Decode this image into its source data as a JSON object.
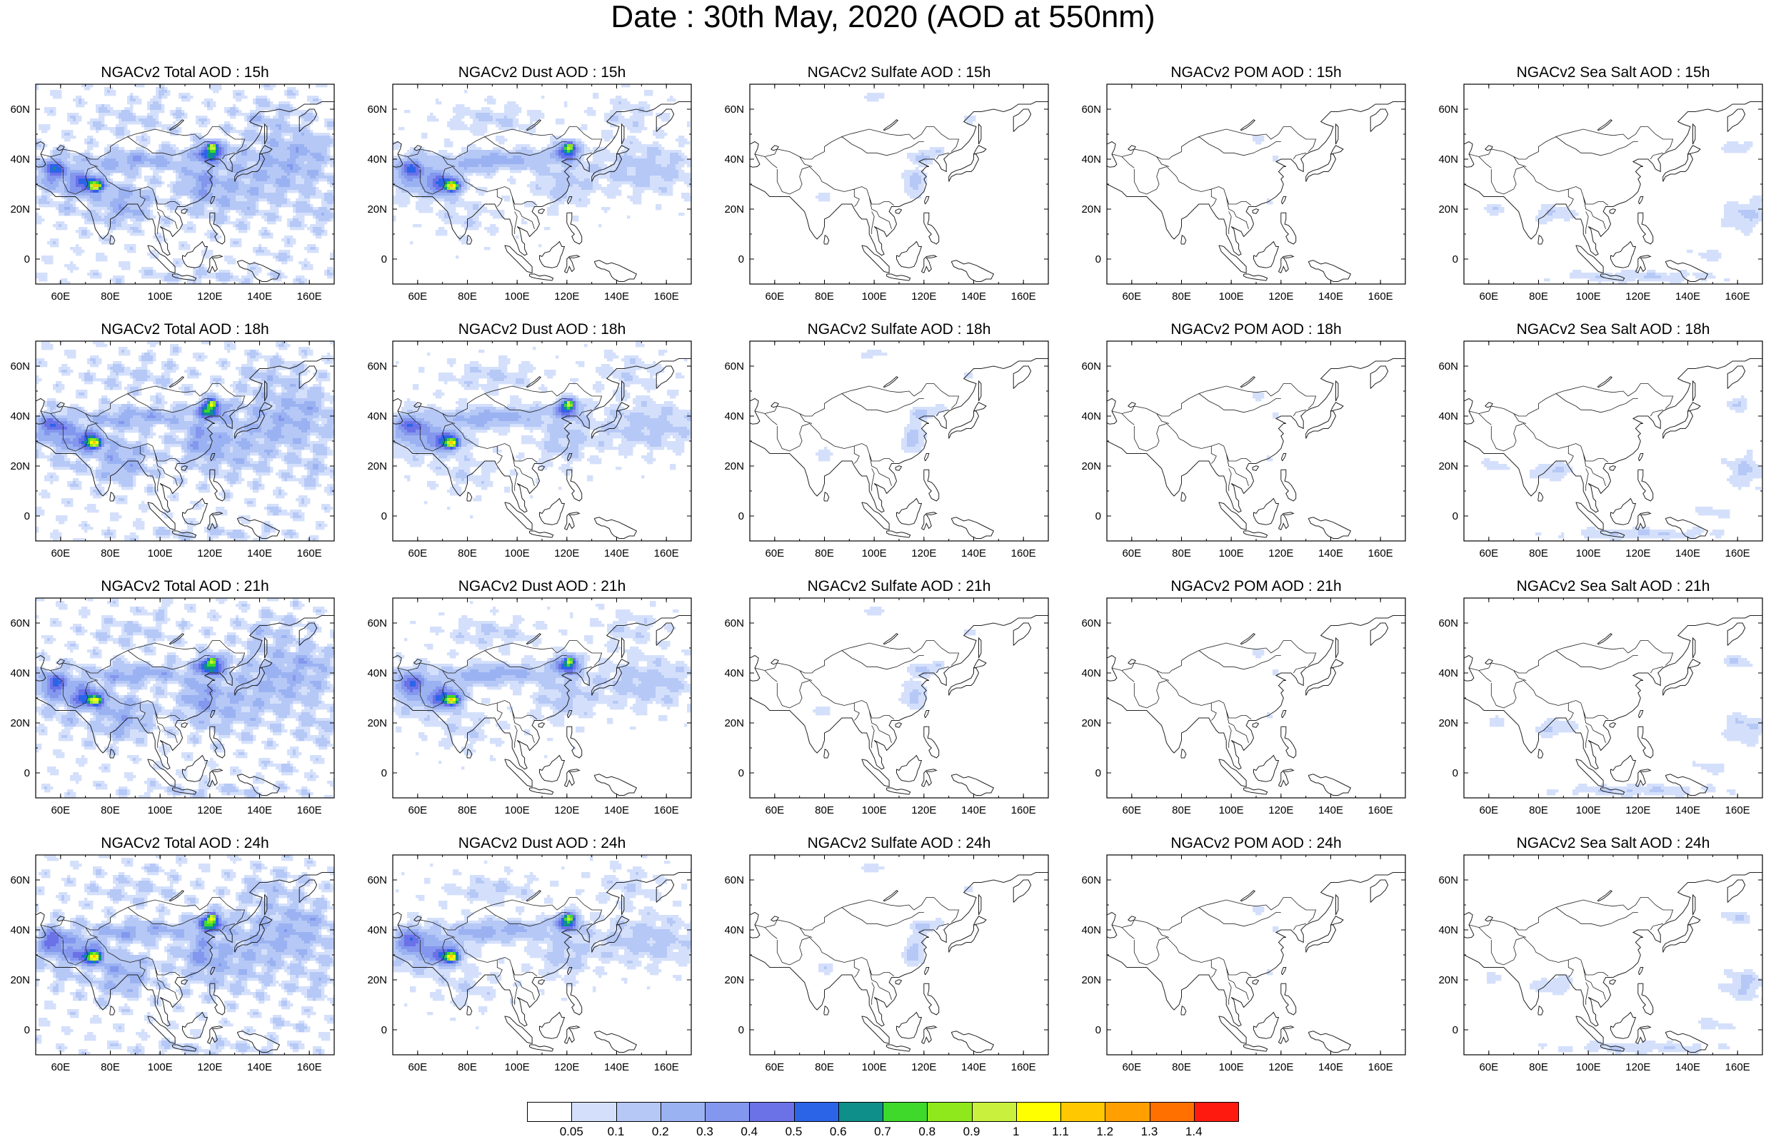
{
  "title": "Date : 30th May, 2020 (AOD at 550nm)",
  "x_ticks": [
    "60E",
    "80E",
    "100E",
    "120E",
    "140E",
    "160E"
  ],
  "y_ticks": [
    "60N",
    "40N",
    "20N",
    "0"
  ],
  "panels": [
    [
      {
        "title": "NGACv2 Total AOD : 15h",
        "field": "total"
      },
      {
        "title": "NGACv2 Dust AOD : 15h",
        "field": "dust"
      },
      {
        "title": "NGACv2 Sulfate AOD : 15h",
        "field": "sulfate"
      },
      {
        "title": "NGACv2 POM AOD : 15h",
        "field": "pom"
      },
      {
        "title": "NGACv2 Sea Salt AOD : 15h",
        "field": "seasalt"
      }
    ],
    [
      {
        "title": "NGACv2 Total AOD : 18h",
        "field": "total"
      },
      {
        "title": "NGACv2 Dust AOD : 18h",
        "field": "dust"
      },
      {
        "title": "NGACv2 Sulfate AOD : 18h",
        "field": "sulfate"
      },
      {
        "title": "NGACv2 POM AOD : 18h",
        "field": "pom"
      },
      {
        "title": "NGACv2 Sea Salt AOD : 18h",
        "field": "seasalt"
      }
    ],
    [
      {
        "title": "NGACv2 Total AOD : 21h",
        "field": "total"
      },
      {
        "title": "NGACv2 Dust AOD : 21h",
        "field": "dust"
      },
      {
        "title": "NGACv2 Sulfate AOD : 21h",
        "field": "sulfate"
      },
      {
        "title": "NGACv2 POM AOD : 21h",
        "field": "pom"
      },
      {
        "title": "NGACv2 Sea Salt AOD : 21h",
        "field": "seasalt"
      }
    ],
    [
      {
        "title": "NGACv2 Total AOD : 24h",
        "field": "total"
      },
      {
        "title": "NGACv2 Dust AOD : 24h",
        "field": "dust"
      },
      {
        "title": "NGACv2 Sulfate AOD : 24h",
        "field": "sulfate"
      },
      {
        "title": "NGACv2 POM AOD : 24h",
        "field": "pom"
      },
      {
        "title": "NGACv2 Sea Salt  AOD : 24h",
        "field": "seasalt"
      }
    ]
  ],
  "colorbar": {
    "labels": [
      "0.05",
      "0.1",
      "0.2",
      "0.3",
      "0.4",
      "0.5",
      "0.6",
      "0.7",
      "0.8",
      "0.9",
      "1",
      "1.1",
      "1.2",
      "1.3",
      "1.4"
    ],
    "colors": [
      "#ffffff",
      "#d4e0fb",
      "#b6c8f6",
      "#9bb2f2",
      "#8497ee",
      "#6b72e7",
      "#2c64e8",
      "#0e8f8a",
      "#3fd92b",
      "#8ee81c",
      "#c8f03c",
      "#ffff00",
      "#ffc800",
      "#ff9f00",
      "#ff7000",
      "#ff1a10"
    ]
  }
}
